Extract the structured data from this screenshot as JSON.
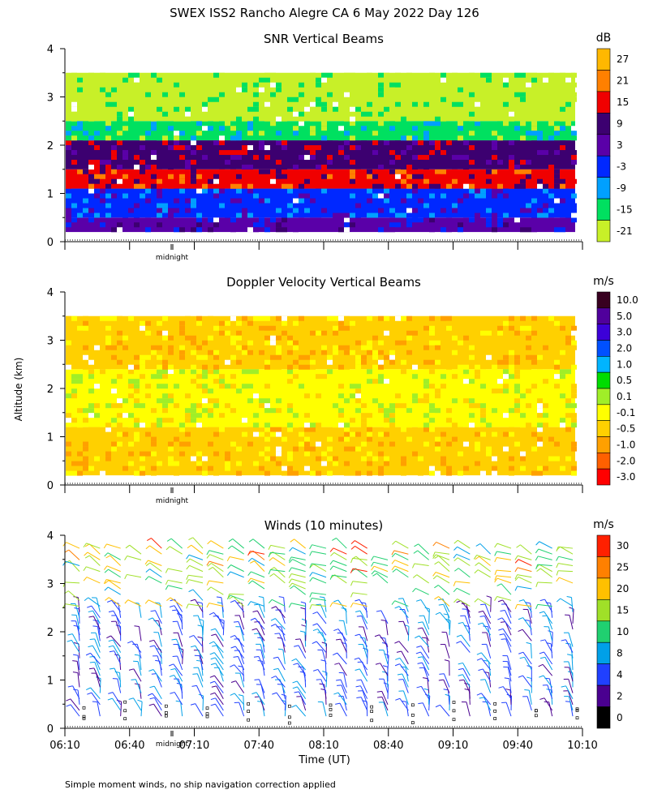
{
  "page_title": "SWEX ISS2 Rancho Alegre CA   6 May 2022 Day 126",
  "y_axis_label": "Altitude (km)",
  "x_axis_label": "Time (UT)",
  "footnote": "Simple moment winds, no ship navigation correction applied",
  "midnight_marker": "midnight",
  "time_ticks": [
    "06:10",
    "06:40",
    "07:10",
    "07:40",
    "08:10",
    "08:40",
    "09:10",
    "09:40",
    "10:10"
  ],
  "chart_data": [
    {
      "type": "heatmap",
      "title": "SNR Vertical Beams",
      "ylim": [
        0,
        4
      ],
      "yticks": [
        0,
        1,
        2,
        3,
        4
      ],
      "xrange": [
        "06:10",
        "10:10"
      ],
      "colorbar": {
        "unit": "dB",
        "labels": [
          "27",
          "21",
          "15",
          "9",
          "3",
          "-3",
          "-9",
          "-15",
          "-21"
        ],
        "colors": [
          "#ffb800",
          "#ff8000",
          "#f00000",
          "#3c0070",
          "#5a00a8",
          "#0028ff",
          "#00a0ff",
          "#00e060",
          "#c8f028"
        ]
      },
      "layers": [
        {
          "alt_km": [
            0.2,
            0.5
          ],
          "value_db": 3
        },
        {
          "alt_km": [
            0.5,
            1.1
          ],
          "value_db": -3
        },
        {
          "alt_km": [
            1.1,
            1.5
          ],
          "value_db": 15
        },
        {
          "alt_km": [
            1.5,
            2.1
          ],
          "value_db": 9
        },
        {
          "alt_km": [
            2.1,
            2.5
          ],
          "value_db": -15
        },
        {
          "alt_km": [
            2.5,
            3.5
          ],
          "value_db": -21
        }
      ]
    },
    {
      "type": "heatmap",
      "title": "Doppler Velocity Vertical Beams",
      "ylim": [
        0,
        4
      ],
      "yticks": [
        0,
        1,
        2,
        3,
        4
      ],
      "xrange": [
        "06:10",
        "10:10"
      ],
      "colorbar": {
        "unit": "m/s",
        "labels": [
          "10.0",
          "5.0",
          "3.0",
          "2.0",
          "1.0",
          "0.5",
          "0.1",
          "-0.1",
          "-0.5",
          "-1.0",
          "-2.0",
          "-3.0"
        ],
        "colors": [
          "#380020",
          "#50009c",
          "#3c00d8",
          "#0050ff",
          "#00b4ff",
          "#00dc00",
          "#a0ee28",
          "#ffff00",
          "#ffd000",
          "#ffa000",
          "#ff6000",
          "#ff0000"
        ]
      },
      "layers": [
        {
          "alt_km": [
            0.2,
            1.2
          ],
          "value_ms": -0.5
        },
        {
          "alt_km": [
            1.2,
            2.4
          ],
          "value_ms": -0.1
        },
        {
          "alt_km": [
            2.4,
            3.5
          ],
          "value_ms": -0.5
        }
      ]
    },
    {
      "type": "scatter",
      "title": "Winds (10 minutes)",
      "ylim": [
        0,
        4
      ],
      "yticks": [
        0,
        1,
        2,
        3,
        4
      ],
      "xrange": [
        "06:10",
        "10:10"
      ],
      "colorbar": {
        "unit": "m/s",
        "labels": [
          "30",
          "25",
          "20",
          "15",
          "10",
          "8",
          "4",
          "2",
          "0"
        ],
        "colors": [
          "#ff2000",
          "#ff8000",
          "#ffc000",
          "#a0e028",
          "#20d070",
          "#00a0e8",
          "#2040ff",
          "#4a0090",
          "#000000"
        ]
      },
      "wind_profiles": [
        {
          "time": "06:30",
          "speed_ms": 8
        },
        {
          "time": "07:10",
          "speed_ms": 4
        },
        {
          "time": "07:50",
          "speed_ms": 15
        },
        {
          "time": "08:30",
          "speed_ms": 10
        },
        {
          "time": "09:10",
          "speed_ms": 4
        },
        {
          "time": "09:50",
          "speed_ms": 15
        }
      ]
    }
  ]
}
